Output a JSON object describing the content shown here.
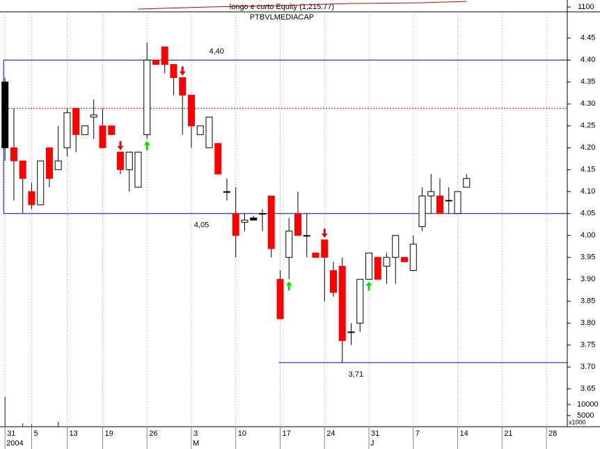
{
  "chart_data": {
    "type": "candlestick",
    "title": "longo e curto Equity (1,215.77)",
    "subtitle": "PTBVLMEDIACAP",
    "open": [
      4.35,
      4.2,
      4.17,
      4.1,
      4.07,
      4.2,
      4.15,
      4.2,
      4.29,
      4.23,
      4.27,
      4.25,
      4.25,
      4.19,
      4.15,
      4.11,
      4.23,
      4.4,
      4.43,
      4.39,
      4.36,
      4.32,
      4.23,
      4.2,
      4.21,
      4.1,
      4.05,
      4.03,
      4.04,
      4.05,
      4.09,
      3.9,
      3.95,
      4.05,
      4.0,
      3.96,
      3.99,
      3.92,
      3.93,
      3.78,
      3.8,
      3.9,
      3.95,
      3.93,
      3.95,
      3.95,
      3.92,
      4.02,
      4.09,
      4.09,
      4.08,
      4.05,
      4.11
    ],
    "high": [
      4.36,
      4.29,
      4.17,
      4.12,
      4.17,
      4.2,
      4.25,
      4.29,
      4.29,
      4.25,
      4.31,
      4.29,
      4.25,
      4.19,
      4.19,
      4.19,
      4.44,
      4.4,
      4.43,
      4.39,
      4.36,
      4.32,
      4.25,
      4.27,
      4.21,
      4.13,
      4.11,
      4.05,
      4.045,
      4.06,
      4.09,
      3.92,
      4.04,
      4.1,
      4.05,
      3.96,
      3.99,
      3.94,
      3.95,
      3.8,
      3.9,
      3.96,
      3.95,
      3.96,
      4.0,
      3.95,
      4.0,
      4.11,
      4.14,
      4.13,
      4.11,
      4.1,
      4.14
    ],
    "low": [
      4.17,
      4.08,
      4.05,
      4.06,
      4.07,
      4.11,
      4.15,
      4.18,
      4.19,
      4.23,
      4.22,
      4.2,
      4.23,
      4.14,
      4.1,
      4.11,
      4.22,
      4.39,
      4.37,
      4.32,
      4.23,
      4.2,
      4.23,
      4.2,
      4.14,
      4.08,
      3.95,
      4.01,
      4.035,
      4.01,
      3.95,
      3.81,
      3.9,
      4.0,
      3.95,
      3.95,
      3.85,
      3.86,
      3.71,
      3.75,
      3.78,
      3.9,
      3.9,
      3.89,
      3.89,
      3.94,
      3.92,
      4.01,
      4.05,
      4.05,
      4.05,
      4.05,
      4.11
    ],
    "close": [
      4.2,
      4.17,
      4.13,
      4.07,
      4.17,
      4.13,
      4.17,
      4.28,
      4.23,
      4.25,
      4.275,
      4.2,
      4.23,
      4.15,
      4.19,
      4.19,
      4.4,
      4.39,
      4.39,
      4.36,
      4.32,
      4.25,
      4.25,
      4.27,
      4.14,
      4.1,
      4.0,
      4.035,
      4.035,
      4.05,
      3.97,
      3.81,
      4.01,
      4.0,
      4.0,
      3.95,
      3.95,
      3.87,
      3.76,
      3.78,
      3.9,
      3.96,
      3.9,
      3.95,
      4.0,
      3.94,
      3.98,
      4.09,
      4.1,
      4.05,
      4.08,
      4.1,
      4.13
    ],
    "colors": [
      "#000000",
      "#ff0000",
      "#ff0000",
      "#ff0000",
      "#ffffff",
      "#ff0000",
      "#ffffff",
      "#ffffff",
      "#ff0000",
      "#ffffff",
      "#ffffff",
      "#ff0000",
      "#ff0000",
      "#ff0000",
      "#ffffff",
      "#ffffff",
      "#ffffff",
      "#ff0000",
      "#ff0000",
      "#ff0000",
      "#ff0000",
      "#ff0000",
      "#ffffff",
      "#ffffff",
      "#ff0000",
      "#ffffff",
      "#ff0000",
      "#ffffff",
      "#000000",
      "#ffffff",
      "#ff0000",
      "#ff0000",
      "#ffffff",
      "#ff0000",
      "#ffffff",
      "#ff0000",
      "#ff0000",
      "#ff0000",
      "#ff0000",
      "#ffffff",
      "#ffffff",
      "#ffffff",
      "#ff0000",
      "#ffffff",
      "#ffffff",
      "#ff0000",
      "#ffffff",
      "#ffffff",
      "#ffffff",
      "#ff0000",
      "#ffffff",
      "#ffffff",
      "#ffffff"
    ],
    "xlim": [
      -0.25,
      63.35
    ],
    "xticks": [
      {
        "value": 0,
        "label": "31"
      },
      {
        "value": 3,
        "label": "5"
      },
      {
        "value": 7,
        "label": "13"
      },
      {
        "value": 11,
        "label": "19"
      },
      {
        "value": 16,
        "label": "26"
      },
      {
        "value": 21,
        "label": "3"
      },
      {
        "value": 26,
        "label": "10"
      },
      {
        "value": 31,
        "label": "17"
      },
      {
        "value": 36,
        "label": "24"
      },
      {
        "value": 41,
        "label": "31"
      },
      {
        "value": 46,
        "label": "7"
      },
      {
        "value": 51,
        "label": "14"
      },
      {
        "value": 56,
        "label": "21"
      },
      {
        "value": 61,
        "label": "28"
      }
    ],
    "period_ticks": [
      {
        "value": 0,
        "label": "2004"
      },
      {
        "value": 21,
        "label": "M"
      },
      {
        "value": 41,
        "label": "J"
      }
    ],
    "ylim": [
      3.64,
      4.51
    ],
    "yticks": [
      {
        "value": 3.65,
        "label": "3.65"
      },
      {
        "value": 3.7,
        "label": "3.70"
      },
      {
        "value": 3.75,
        "label": "3.75"
      },
      {
        "value": 3.8,
        "label": "3.80"
      },
      {
        "value": 3.85,
        "label": "3.85"
      },
      {
        "value": 3.9,
        "label": "3.90"
      },
      {
        "value": 3.95,
        "label": "3.95"
      },
      {
        "value": 4.0,
        "label": "4.00"
      },
      {
        "value": 4.05,
        "label": "4.05"
      },
      {
        "value": 4.1,
        "label": "4.10"
      },
      {
        "value": 4.15,
        "label": "4.15"
      },
      {
        "value": 4.2,
        "label": "4.20"
      },
      {
        "value": 4.25,
        "label": "4.25"
      },
      {
        "value": 4.3,
        "label": "4.30"
      },
      {
        "value": 4.35,
        "label": "4.35"
      },
      {
        "value": 4.4,
        "label": "4.40"
      },
      {
        "value": 4.45,
        "label": "4.45"
      }
    ],
    "levels": [
      {
        "value": 4.4,
        "label": "4,40",
        "start": 0,
        "color": "#0000c0"
      },
      {
        "value": 4.05,
        "label": "4,05",
        "start": 0,
        "color": "#0000c0"
      },
      {
        "value": 3.71,
        "label": "3,71",
        "start": 31,
        "color": "#0000c0"
      }
    ],
    "reference": {
      "value": 4.29,
      "color": "#d00000"
    },
    "signals": {
      "sell": [
        13,
        20,
        36
      ],
      "buy": [
        16,
        32,
        41
      ],
      "sell_color": "#e00000",
      "buy_color": "#00e000"
    },
    "equity": {
      "x": [
        15,
        23,
        31,
        39,
        47,
        52
      ],
      "values": [
        1057,
        1100,
        1129,
        1172,
        1187,
        1216
      ],
      "ylim": [
        1000,
        1230
      ],
      "yticks": [
        1100
      ],
      "color": "#c00000"
    },
    "volume": {
      "values": [
        13400,
        0,
        1560,
        940,
        0,
        0,
        2190,
        0,
        0,
        0,
        0,
        0,
        0,
        0,
        0,
        0,
        0,
        0,
        0,
        0,
        0,
        0,
        0,
        0,
        0,
        0,
        0,
        0,
        0,
        0,
        0,
        0,
        0,
        0,
        0,
        0,
        0,
        0,
        0,
        0,
        0,
        0,
        0,
        0,
        0,
        0,
        0,
        0,
        0,
        0,
        0,
        0,
        0
      ],
      "ylim": [
        0,
        15000
      ],
      "yticks": [
        10000,
        5000
      ],
      "unit": "x1000",
      "color": "#0000c0"
    },
    "grid": true
  }
}
